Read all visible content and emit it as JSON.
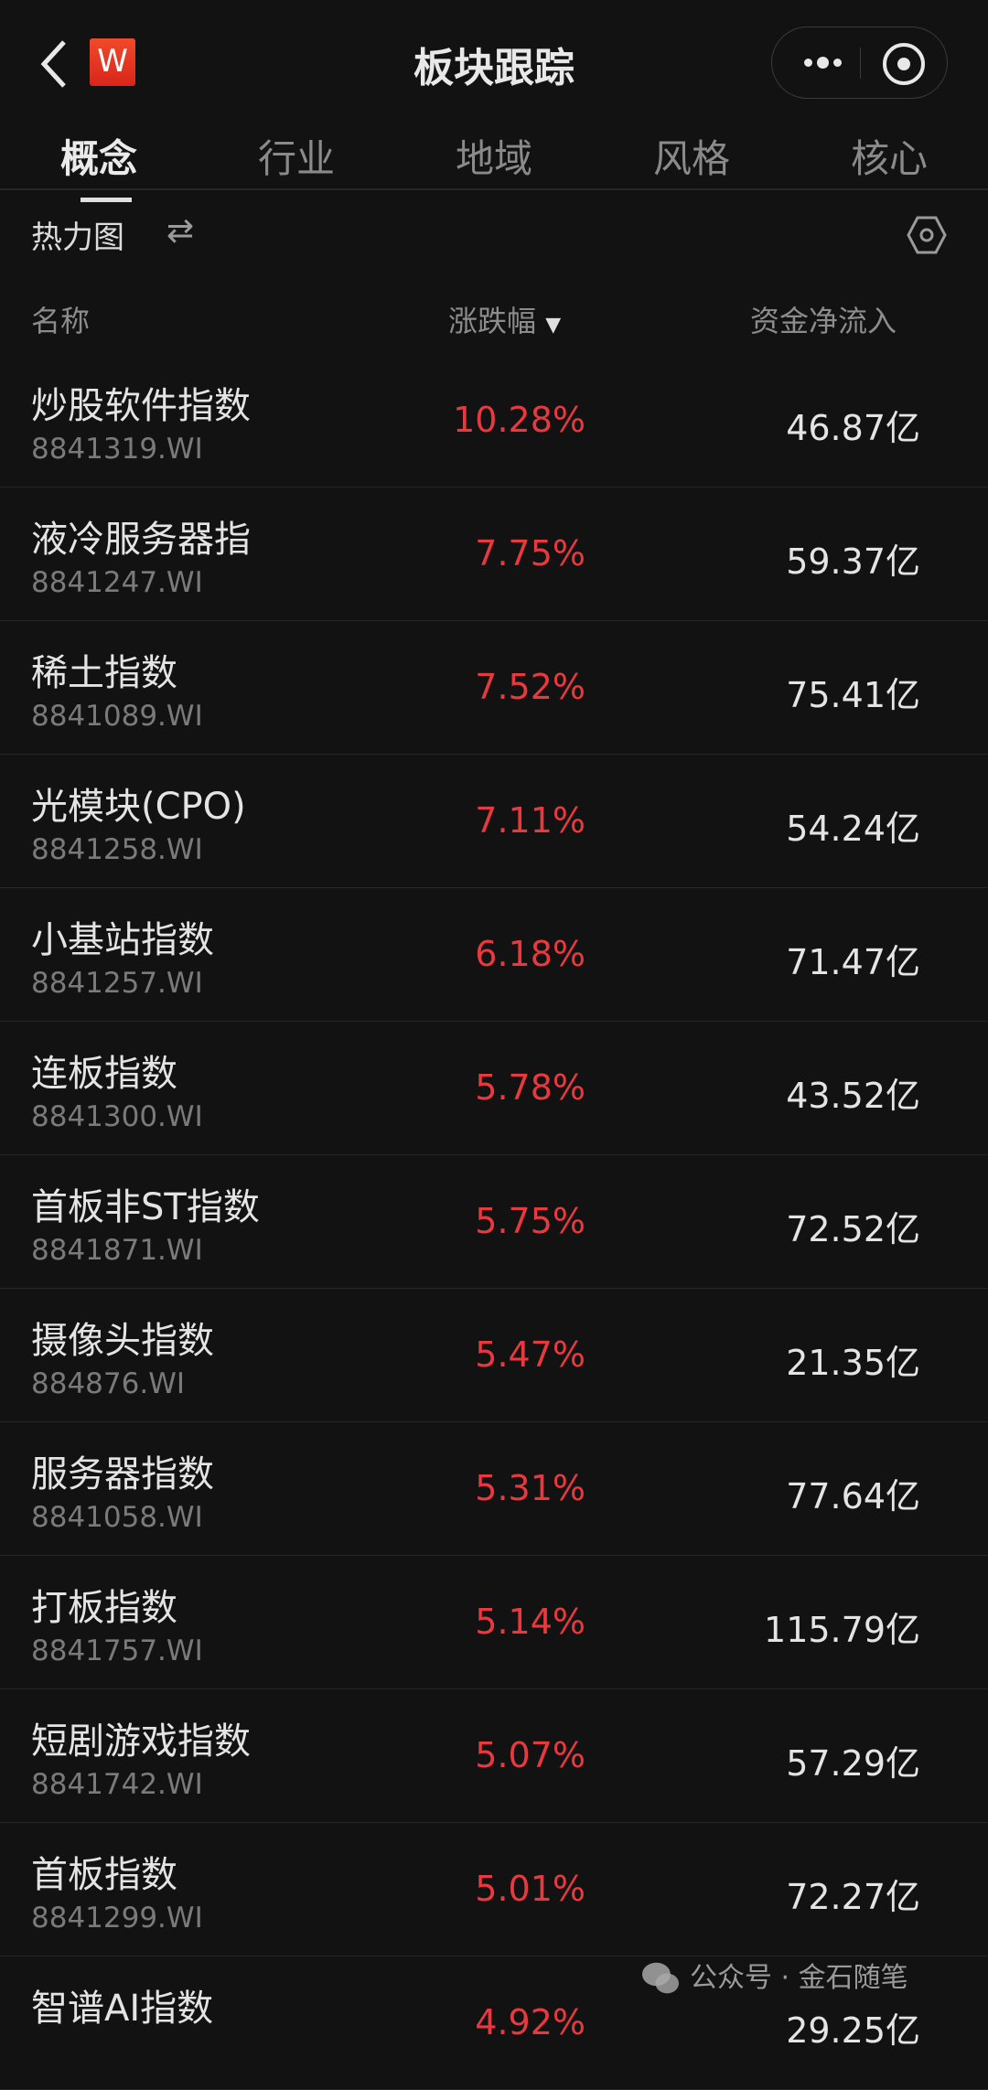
{
  "header": {
    "title": "板块跟踪",
    "logo_text": "W"
  },
  "tabs": [
    {
      "label": "概念",
      "active": true
    },
    {
      "label": "行业"
    },
    {
      "label": "地域"
    },
    {
      "label": "风格"
    },
    {
      "label": "核心"
    }
  ],
  "toolbar": {
    "heatmap_label": "热力图",
    "swap_icon": "⇄"
  },
  "columns": {
    "name": "名称",
    "change": "涨跌幅",
    "change_sort": "▼",
    "flow": "资金净流入"
  },
  "rows": [
    {
      "name": "炒股软件指数",
      "code": "8841319.WI",
      "change": "10.28%",
      "flow": "46.87亿"
    },
    {
      "name": "液冷服务器指",
      "code": "8841247.WI",
      "change": "7.75%",
      "flow": "59.37亿"
    },
    {
      "name": "稀土指数",
      "code": "8841089.WI",
      "change": "7.52%",
      "flow": "75.41亿"
    },
    {
      "name": "光模块(CPO)",
      "code": "8841258.WI",
      "change": "7.11%",
      "flow": "54.24亿"
    },
    {
      "name": "小基站指数",
      "code": "8841257.WI",
      "change": "6.18%",
      "flow": "71.47亿"
    },
    {
      "name": "连板指数",
      "code": "8841300.WI",
      "change": "5.78%",
      "flow": "43.52亿"
    },
    {
      "name": "首板非ST指数",
      "code": "8841871.WI",
      "change": "5.75%",
      "flow": "72.52亿"
    },
    {
      "name": "摄像头指数",
      "code": "884876.WI",
      "change": "5.47%",
      "flow": "21.35亿"
    },
    {
      "name": "服务器指数",
      "code": "8841058.WI",
      "change": "5.31%",
      "flow": "77.64亿"
    },
    {
      "name": "打板指数",
      "code": "8841757.WI",
      "change": "5.14%",
      "flow": "115.79亿"
    },
    {
      "name": "短剧游戏指数",
      "code": "8841742.WI",
      "change": "5.07%",
      "flow": "57.29亿"
    },
    {
      "name": "首板指数",
      "code": "8841299.WI",
      "change": "5.01%",
      "flow": "72.27亿"
    },
    {
      "name": "智谱AI指数",
      "code": "",
      "change": "4.92%",
      "flow": "29.25亿"
    }
  ],
  "watermark": "公众号 · 金石随笔",
  "colors": {
    "background": "#121212",
    "up": "#e8393f",
    "logo": "#e0301e"
  }
}
